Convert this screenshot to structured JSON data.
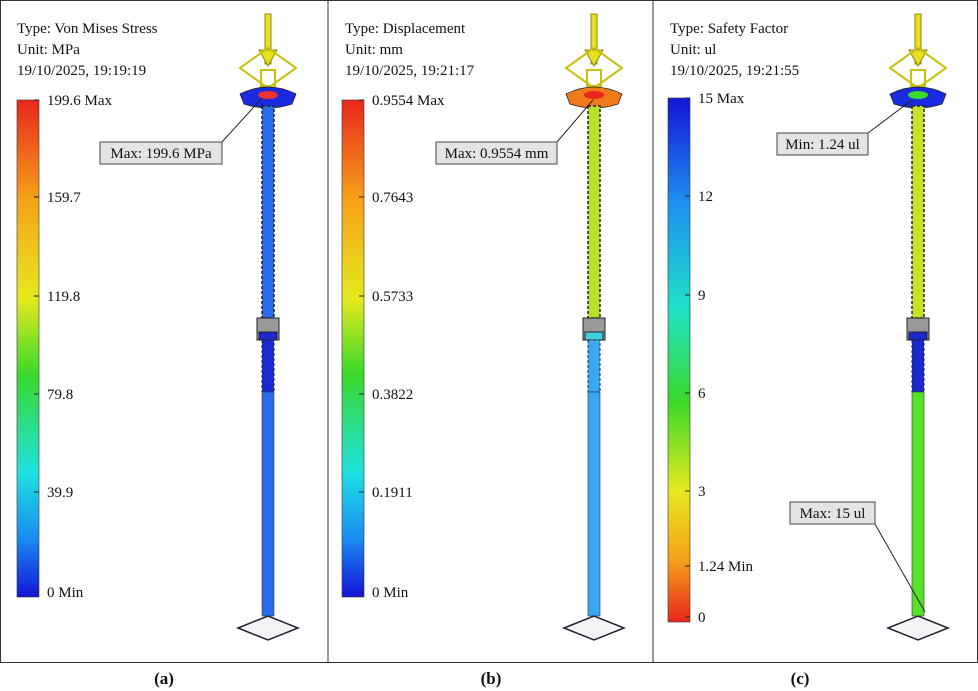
{
  "panels": [
    {
      "type": "Type: Von Mises Stress",
      "unit": "Unit: MPa",
      "date": "19/10/2025, 19:19:19",
      "legend": [
        "199.6 Max",
        "159.7",
        "119.8",
        "79.8",
        "39.9",
        "0 Min"
      ],
      "callouts": [
        "Max: 199.6 MPa"
      ],
      "caption": "(a)"
    },
    {
      "type": "Type: Displacement",
      "unit": "Unit: mm",
      "date": "19/10/2025, 19:21:17",
      "legend": [
        "0.9554 Max",
        "0.7643",
        "0.5733",
        "0.3822",
        "0.1911",
        "0 Min"
      ],
      "callouts": [
        "Max: 0.9554 mm"
      ],
      "caption": "(b)"
    },
    {
      "type": "Type: Safety Factor",
      "unit": "Unit: ul",
      "date": "19/10/2025, 19:21:55",
      "legend": [
        "15 Max",
        "12",
        "9",
        "6",
        "3",
        "1.24 Min",
        "0"
      ],
      "callouts": [
        "Min: 1.24 ul",
        "Max: 15 ul"
      ],
      "caption": "(c)"
    }
  ]
}
